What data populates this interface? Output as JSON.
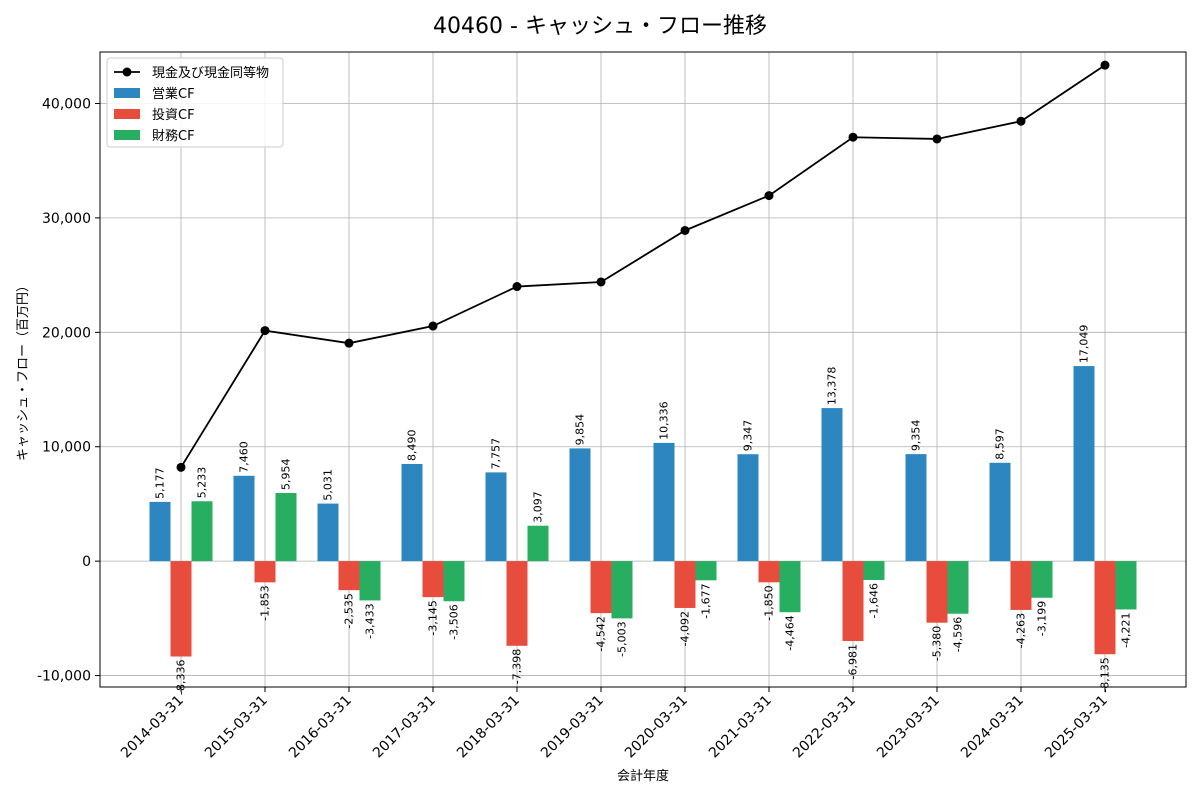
{
  "chart_data": {
    "type": "bar+line",
    "title": "40460 - キャッシュ・フロー推移",
    "xlabel": "会計年度",
    "ylabel": "キャッシュ・フロー（百万円）",
    "categories": [
      "2014-03-31",
      "2015-03-31",
      "2016-03-31",
      "2017-03-31",
      "2018-03-31",
      "2019-03-31",
      "2020-03-31",
      "2021-03-31",
      "2022-03-31",
      "2023-03-31",
      "2024-03-31",
      "2025-03-31"
    ],
    "ylim": [
      -11000,
      44500
    ],
    "yticks": [
      -10000,
      0,
      10000,
      20000,
      30000,
      40000
    ],
    "ytick_labels": [
      "-10,000",
      "0",
      "10,000",
      "20,000",
      "30,000",
      "40,000"
    ],
    "grid": true,
    "legend_position": "top-left",
    "series": [
      {
        "name": "営業CF",
        "kind": "bar",
        "color": "#2e86c1",
        "values": [
          5177,
          7460,
          5031,
          8490,
          7757,
          9854,
          10336,
          9347,
          13378,
          9354,
          8597,
          17049
        ],
        "labels": [
          "5,177",
          "7,460",
          "5,031",
          "8,490",
          "7,757",
          "9,854",
          "10,336",
          "9,347",
          "13,378",
          "9,354",
          "8,597",
          "17,049"
        ]
      },
      {
        "name": "投資CF",
        "kind": "bar",
        "color": "#e74c3c",
        "values": [
          -8336,
          -1853,
          -2535,
          -3145,
          -7398,
          -4542,
          -4092,
          -1850,
          -6981,
          -5380,
          -4263,
          -8135
        ],
        "labels": [
          "-8,336",
          "-1,853",
          "-2,535",
          "-3,145",
          "-7,398",
          "-4,542",
          "-4,092",
          "-1,850",
          "-6,981",
          "-5,380",
          "-4,263",
          "-8,135"
        ]
      },
      {
        "name": "財務CF",
        "kind": "bar",
        "color": "#27ae60",
        "values": [
          5233,
          5954,
          -3433,
          -3506,
          3097,
          -5003,
          -1677,
          -4464,
          -1646,
          -4596,
          -3199,
          -4221
        ],
        "labels": [
          "5,233",
          "5,954",
          "-3,433",
          "-3,506",
          "3,097",
          "-5,003",
          "-1,677",
          "-4,464",
          "-1,646",
          "-4,596",
          "-3,199",
          "-4,221"
        ]
      },
      {
        "name": "現金及び現金同等物",
        "kind": "line",
        "color": "#000000",
        "values": [
          8200,
          20150,
          19050,
          20550,
          24000,
          24400,
          28900,
          31950,
          37050,
          36900,
          38450,
          43350
        ]
      }
    ]
  }
}
